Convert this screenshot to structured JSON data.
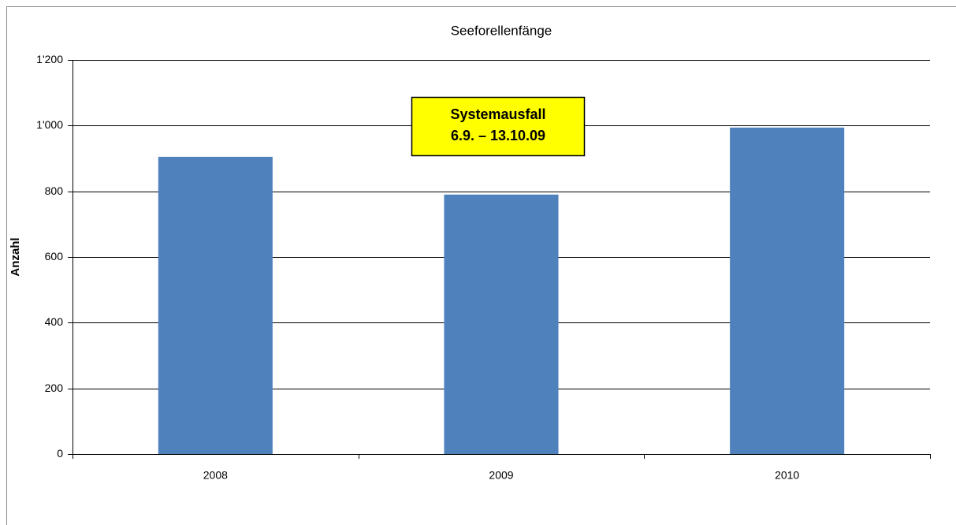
{
  "chart_data": {
    "type": "bar",
    "title": "Seeforellenfänge",
    "y_label": "Anzahl",
    "categories": [
      "2008",
      "2009",
      "2010"
    ],
    "values": [
      905,
      790,
      994
    ],
    "color": "#4f81bd",
    "ylim": [
      0,
      1200
    ],
    "yticks": [
      0,
      200,
      400,
      600,
      800,
      {
        "value": 1000,
        "label": "1'000"
      },
      {
        "value": 1200,
        "label": "1'200"
      }
    ],
    "grid": true,
    "annotation": [
      "Systemausfall",
      "6.9. – 13.10.09"
    ]
  }
}
